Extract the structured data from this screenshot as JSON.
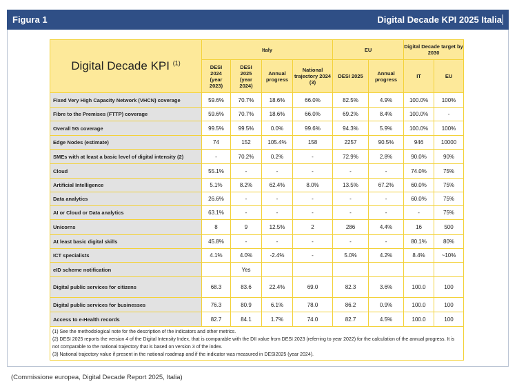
{
  "header": {
    "left": "Figura 1",
    "right": "Digital Decade KPI 2025 Italia"
  },
  "table": {
    "title": "Digital Decade KPI",
    "title_note": "(1)",
    "groups": [
      "Italy",
      "EU",
      "Digital Decade target by 2030"
    ],
    "columns": [
      "DESI 2024 (year 2023)",
      "DESI 2025 (year 2024)",
      "Annual progress",
      "National trajectory 2024 (3)",
      "DESI 2025",
      "Annual progress",
      "IT",
      "EU"
    ],
    "rows": [
      {
        "label": "Fixed Very High Capacity Network (VHCN) coverage",
        "values": [
          "59.6%",
          "70.7%",
          "18.6%",
          "66.0%",
          "82.5%",
          "4.9%",
          "100.0%",
          "100%"
        ]
      },
      {
        "label": "Fibre to the Premises (FTTP) coverage",
        "values": [
          "59.6%",
          "70.7%",
          "18.6%",
          "66.0%",
          "69.2%",
          "8.4%",
          "100.0%",
          "-"
        ]
      },
      {
        "label": "Overall 5G coverage",
        "values": [
          "99.5%",
          "99.5%",
          "0.0%",
          "99.6%",
          "94.3%",
          "5.9%",
          "100.0%",
          "100%"
        ]
      },
      {
        "label": "Edge Nodes (estimate)",
        "values": [
          "74",
          "152",
          "105.4%",
          "158",
          "2257",
          "90.5%",
          "946",
          "10000"
        ]
      },
      {
        "label": "SMEs with at least a basic level of digital intensity (2)",
        "values": [
          "-",
          "70.2%",
          "0.2%",
          "-",
          "72.9%",
          "2.8%",
          "90.0%",
          "90%"
        ]
      },
      {
        "label": "Cloud",
        "values": [
          "55.1%",
          "-",
          "-",
          "-",
          "-",
          "-",
          "74.0%",
          "75%"
        ]
      },
      {
        "label": "Artificial Intelligence",
        "values": [
          "5.1%",
          "8.2%",
          "62.4%",
          "8.0%",
          "13.5%",
          "67.2%",
          "60.0%",
          "75%"
        ]
      },
      {
        "label": "Data analytics",
        "values": [
          "26.6%",
          "-",
          "-",
          "-",
          "-",
          "-",
          "60.0%",
          "75%"
        ]
      },
      {
        "label": "AI or Cloud or Data analytics",
        "values": [
          "63.1%",
          "-",
          "-",
          "-",
          "-",
          "-",
          "-",
          "75%"
        ]
      },
      {
        "label": "Unicorns",
        "values": [
          "8",
          "9",
          "12.5%",
          "2",
          "286",
          "4.4%",
          "16",
          "500"
        ]
      },
      {
        "label": "At least basic digital skills",
        "values": [
          "45.8%",
          "-",
          "-",
          "-",
          "-",
          "-",
          "80.1%",
          "80%"
        ]
      },
      {
        "label": "ICT specialists",
        "values": [
          "4.1%",
          "4.0%",
          "-2.4%",
          "-",
          "5.0%",
          "4.2%",
          "8.4%",
          "~10%"
        ]
      },
      {
        "label": "eID scheme notification",
        "values": [
          "",
          "Yes",
          "",
          "",
          "",
          "",
          "",
          ""
        ]
      },
      {
        "label": "Digital public services for citizens",
        "values": [
          "68.3",
          "83.6",
          "22.4%",
          "69.0",
          "82.3",
          "3.6%",
          "100.0",
          "100"
        ]
      },
      {
        "label": "Digital public services for businesses",
        "values": [
          "76.3",
          "80.9",
          "6.1%",
          "78.0",
          "86.2",
          "0.9%",
          "100.0",
          "100"
        ]
      },
      {
        "label": "Access to e-Health records",
        "values": [
          "82.7",
          "84.1",
          "1.7%",
          "74.0",
          "82.7",
          "4.5%",
          "100.0",
          "100"
        ]
      }
    ],
    "notes": [
      "(1) See the methodological note for the description of the indicators and other metrics.",
      "(2) DESI 2025 reports the version 4 of the Digital Intensity Index, that is comparable with the DII value from DESI 2023 (referring to year 2022) for the calculation of the annual progress. It is not comparable to the national trajectory that is based on version 3 of the index.",
      "(3) National trajectory value if present in the national roadmap and if the indicator was measured in DESI2025 (year 2024)."
    ]
  },
  "caption": "(Commissione europea, Digital Decade Report 2025, Italia)"
}
